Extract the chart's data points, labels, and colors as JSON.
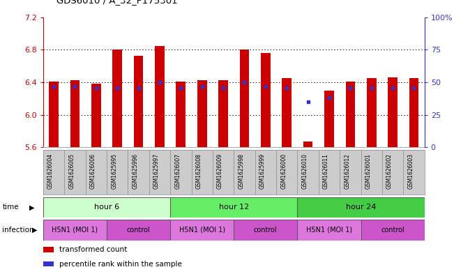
{
  "title": "GDS6010 / A_32_P175301",
  "samples": [
    "GSM1626004",
    "GSM1626005",
    "GSM1626006",
    "GSM1625995",
    "GSM1625996",
    "GSM1625997",
    "GSM1626007",
    "GSM1626008",
    "GSM1626009",
    "GSM1625998",
    "GSM1625999",
    "GSM1626000",
    "GSM1626010",
    "GSM1626011",
    "GSM1626012",
    "GSM1626001",
    "GSM1626002",
    "GSM1626003"
  ],
  "bar_values": [
    6.41,
    6.43,
    6.38,
    6.8,
    6.73,
    6.85,
    6.41,
    6.43,
    6.43,
    6.8,
    6.76,
    6.45,
    5.67,
    6.3,
    6.41,
    6.45,
    6.46,
    6.45
  ],
  "percentile_values": [
    47,
    47,
    46,
    46,
    46,
    50,
    46,
    47,
    46,
    50,
    47,
    46,
    35,
    38,
    46,
    46,
    46,
    46
  ],
  "bar_bottom": 5.6,
  "ylim_left": [
    5.6,
    7.2
  ],
  "ylim_right": [
    0,
    100
  ],
  "yticks_left": [
    5.6,
    6.0,
    6.4,
    6.8,
    7.2
  ],
  "yticks_right": [
    0,
    25,
    50,
    75,
    100
  ],
  "ytick_labels_right": [
    "0",
    "25",
    "50",
    "75",
    "100%"
  ],
  "bar_color": "#cc0000",
  "dot_color": "#3333cc",
  "grid_color": "#000000",
  "background_color": "#ffffff",
  "time_groups": [
    {
      "label": "hour 6",
      "start": 0,
      "end": 6,
      "color": "#ccffcc"
    },
    {
      "label": "hour 12",
      "start": 6,
      "end": 12,
      "color": "#66ee66"
    },
    {
      "label": "hour 24",
      "start": 12,
      "end": 18,
      "color": "#44cc44"
    }
  ],
  "infection_groups": [
    {
      "label": "H5N1 (MOI 1)",
      "start": 0,
      "end": 3,
      "color": "#dd77dd"
    },
    {
      "label": "control",
      "start": 3,
      "end": 6,
      "color": "#cc55cc"
    },
    {
      "label": "H5N1 (MOI 1)",
      "start": 6,
      "end": 9,
      "color": "#dd77dd"
    },
    {
      "label": "control",
      "start": 9,
      "end": 12,
      "color": "#cc55cc"
    },
    {
      "label": "H5N1 (MOI 1)",
      "start": 12,
      "end": 15,
      "color": "#dd77dd"
    },
    {
      "label": "control",
      "start": 15,
      "end": 18,
      "color": "#cc55cc"
    }
  ],
  "legend_items": [
    {
      "label": "transformed count",
      "color": "#cc0000"
    },
    {
      "label": "percentile rank within the sample",
      "color": "#3333cc"
    }
  ],
  "ylabel_left_color": "#cc0000",
  "ylabel_right_color": "#3333cc",
  "label_bg_color": "#cccccc"
}
